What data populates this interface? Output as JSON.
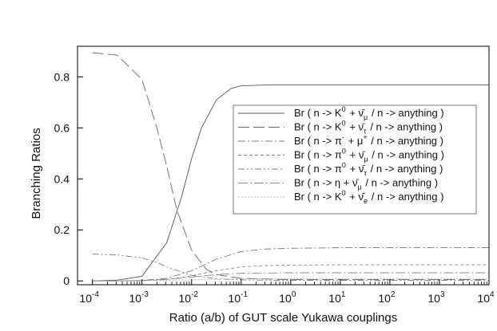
{
  "chart_data": {
    "type": "line",
    "title": "",
    "xlabel": "Ratio  (a/b) of GUT scale Yukawa couplings",
    "ylabel": "Branching Ratios",
    "xscale": "log",
    "xlim": [
      5e-05,
      10000
    ],
    "ylim": [
      -0.015,
      0.92
    ],
    "x_ticks": [
      {
        "exp": -4,
        "base": "10",
        "sup": "-4"
      },
      {
        "exp": -3,
        "base": "10",
        "sup": "-3"
      },
      {
        "exp": -2,
        "base": "10",
        "sup": "-2"
      },
      {
        "exp": -1,
        "base": "10",
        "sup": "-1"
      },
      {
        "exp": 0,
        "base": "10",
        "sup": "0"
      },
      {
        "exp": 1,
        "base": "10",
        "sup": "1"
      },
      {
        "exp": 2,
        "base": "10",
        "sup": "2"
      },
      {
        "exp": 3,
        "base": "10",
        "sup": "3"
      },
      {
        "exp": 4,
        "base": "10",
        "sup": "4"
      }
    ],
    "y_ticks": [
      {
        "value": 0,
        "label": "0"
      },
      {
        "value": 0.2,
        "label": "0.2"
      },
      {
        "value": 0.4,
        "label": "0.4"
      },
      {
        "value": 0.6,
        "label": "0.6"
      },
      {
        "value": 0.8,
        "label": "0.8"
      }
    ],
    "grid": false,
    "legend_position": "right-center",
    "series": [
      {
        "name": "Br ( n -> K0 + vmu / n -> anything )",
        "legend": {
          "pre": "Br ( n -> K",
          "sup": "0",
          "mid": " + ν̄",
          "sub": "μ",
          "post": " / n -> anything )"
        },
        "style": "solid",
        "x": [
          -4,
          -3.5,
          -3,
          -2.5,
          -2.2,
          -2,
          -1.8,
          -1.5,
          -1.2,
          -1,
          -0.5,
          0,
          1,
          2,
          3,
          4
        ],
        "y": [
          0.0,
          0.003,
          0.018,
          0.15,
          0.33,
          0.48,
          0.6,
          0.71,
          0.755,
          0.765,
          0.768,
          0.768,
          0.768,
          0.768,
          0.768,
          0.768
        ]
      },
      {
        "name": "Br ( n -> K0 + vtau / n -> anything )",
        "legend": {
          "pre": "Br ( n -> K",
          "sup": "0",
          "mid": " + ν̄",
          "sub": "τ",
          "post": " / n -> anything )"
        },
        "style": "longdash",
        "x": [
          -4,
          -3.5,
          -3,
          -2.7,
          -2.5,
          -2.3,
          -2,
          -1.7,
          -1.5,
          -1,
          0,
          1,
          2,
          3,
          4
        ],
        "y": [
          0.895,
          0.885,
          0.79,
          0.6,
          0.45,
          0.28,
          0.12,
          0.045,
          0.025,
          0.01,
          0.005,
          0.005,
          0.005,
          0.005,
          0.005
        ]
      },
      {
        "name": "Br ( n -> pi- + mu+ / n -> anything )",
        "legend": {
          "pre": "Br ( n -> π",
          "sup": "-",
          "mid": " + μ",
          "sub": "",
          "sup2": "+",
          "post": " / n -> anything )"
        },
        "style": "dashdot",
        "x": [
          -4,
          -3.5,
          -3,
          -2.5,
          -2,
          -1.5,
          -1,
          -0.5,
          0,
          1,
          2,
          3,
          4
        ],
        "y": [
          0.0,
          0.0,
          0.002,
          0.01,
          0.04,
          0.085,
          0.115,
          0.125,
          0.128,
          0.13,
          0.13,
          0.13,
          0.13
        ]
      },
      {
        "name": "Br ( n -> pi0 + vmu / n -> anything )",
        "legend": {
          "pre": "Br ( n -> π",
          "sup": "0",
          "mid": " + ν̄",
          "sub": "μ",
          "post": " / n -> anything )"
        },
        "style": "shortdash",
        "x": [
          -4,
          -3.5,
          -3,
          -2.5,
          -2,
          -1.5,
          -1,
          -0.5,
          0,
          1,
          2,
          3,
          4
        ],
        "y": [
          0.0,
          0.0,
          0.001,
          0.005,
          0.02,
          0.04,
          0.055,
          0.06,
          0.062,
          0.063,
          0.063,
          0.063,
          0.063
        ]
      },
      {
        "name": "Br ( n -> pi0 + vtau / n -> anything )",
        "legend": {
          "pre": "Br ( n -> π",
          "sup": "0",
          "mid": " + ν̄",
          "sub": "τ",
          "post": " / n -> anything )"
        },
        "style": "dashdotdot",
        "x": [
          -4,
          -3.5,
          -3,
          -2.7,
          -2.5,
          -2.2,
          -2,
          -1.5,
          -1,
          0,
          1,
          2,
          3,
          4
        ],
        "y": [
          0.105,
          0.102,
          0.09,
          0.072,
          0.055,
          0.035,
          0.022,
          0.008,
          0.004,
          0.002,
          0.002,
          0.002,
          0.002,
          0.002
        ]
      },
      {
        "name": "Br ( n -> eta + vmu / n -> anything )",
        "legend": {
          "pre": "Br ( n -> η + ν̄",
          "sup": "",
          "mid": "",
          "sub": "μ",
          "post": " / n -> anything )"
        },
        "style": "dashdot2",
        "x": [
          -4,
          -3.5,
          -3,
          -2.5,
          -2,
          -1.5,
          -1,
          0,
          1,
          2,
          3,
          4
        ],
        "y": [
          0.0,
          0.0,
          0.002,
          0.006,
          0.015,
          0.025,
          0.03,
          0.032,
          0.032,
          0.032,
          0.032,
          0.032
        ]
      },
      {
        "name": "Br ( n -> K0 + ve / n -> anything )",
        "legend": {
          "pre": "Br ( n -> K",
          "sup": "0",
          "mid": " + ν̄",
          "sub": "e",
          "post": " / n -> anything )"
        },
        "style": "dotted",
        "x": [
          -4,
          -3.5,
          -3,
          -2.5,
          -2,
          -1.5,
          -1,
          0,
          1,
          2,
          3,
          4
        ],
        "y": [
          0.0,
          0.0,
          0.001,
          0.002,
          0.004,
          0.006,
          0.008,
          0.009,
          0.009,
          0.009,
          0.009,
          0.009
        ]
      }
    ]
  }
}
